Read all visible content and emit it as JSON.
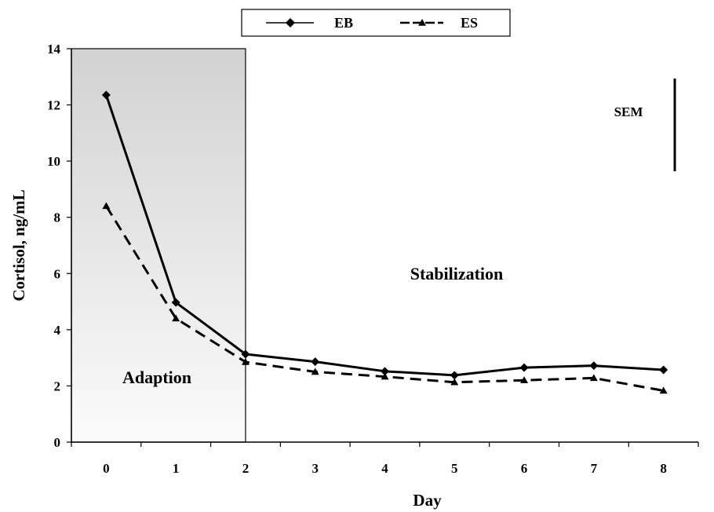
{
  "chart_data": {
    "type": "line",
    "xlabel": "Day",
    "ylabel": "Cortisol, ng/mL",
    "x": [
      0,
      1,
      2,
      3,
      4,
      5,
      6,
      7,
      8
    ],
    "xlim": [
      -0.5,
      8.5
    ],
    "ylim": [
      0,
      14
    ],
    "y_ticks": [
      0,
      2,
      4,
      6,
      8,
      10,
      12,
      14
    ],
    "grid": false,
    "legend_position": "top-center",
    "series": [
      {
        "name": "EB",
        "marker": "diamond",
        "line_style": "solid",
        "color": "#000000",
        "values": [
          12.35,
          4.97,
          3.13,
          2.86,
          2.52,
          2.38,
          2.65,
          2.72,
          2.57
        ]
      },
      {
        "name": "ES",
        "marker": "triangle",
        "line_style": "dashed",
        "color": "#000000",
        "values": [
          8.4,
          4.4,
          2.85,
          2.5,
          2.33,
          2.13,
          2.2,
          2.28,
          1.83
        ]
      }
    ],
    "regions": [
      {
        "label": "Adaption",
        "x_start": -0.5,
        "x_end": 2,
        "fill": "gradient-gray"
      },
      {
        "label": "Stabilization",
        "x_start": 2,
        "x_end": 8.5
      }
    ],
    "annotations": [
      {
        "text": "SEM",
        "error_bar_length": 3.3
      }
    ]
  }
}
